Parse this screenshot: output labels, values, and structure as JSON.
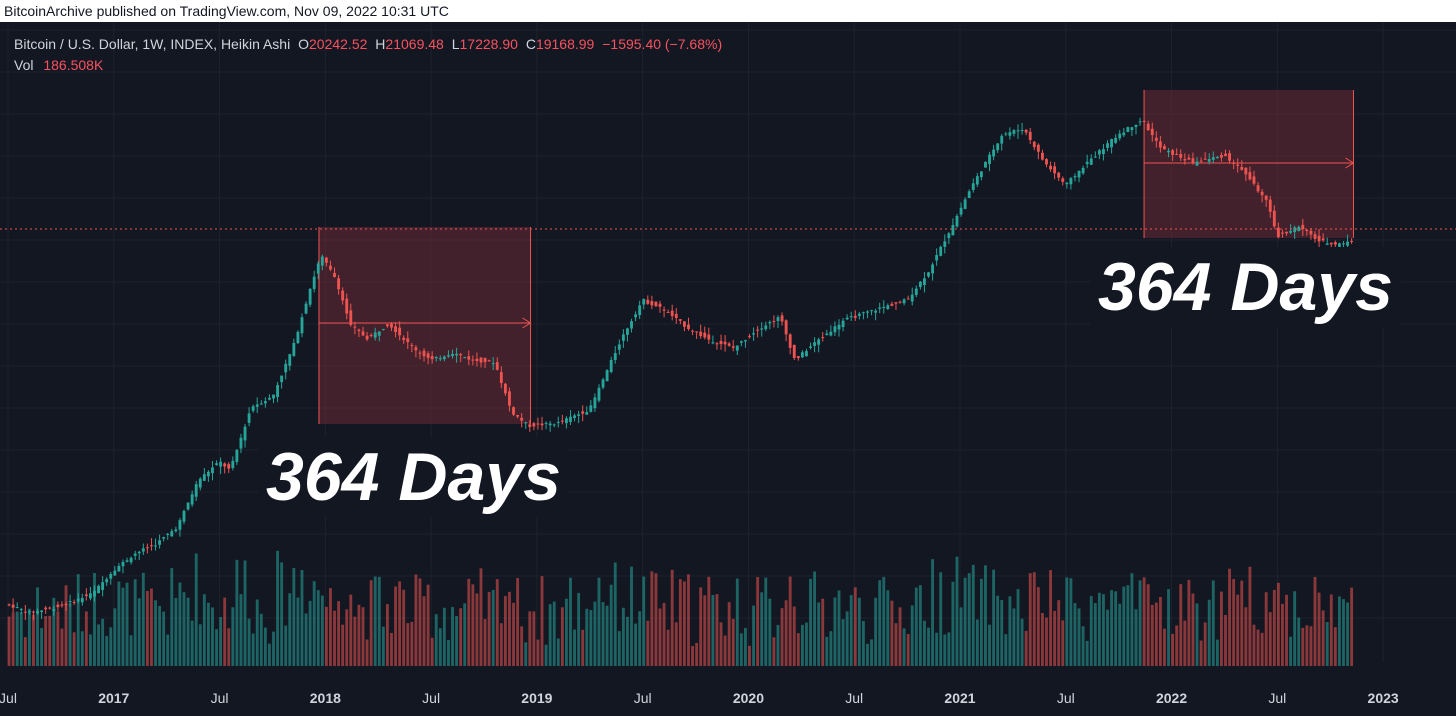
{
  "publisher_line": "BitcoinArchive published on TradingView.com, Nov 09, 2022 10:31 UTC",
  "legend": {
    "symbol": "Bitcoin / U.S. Dollar, 1W, INDEX, Heikin Ashi",
    "open_label": "O",
    "open": "20242.52",
    "high_label": "H",
    "high": "21069.48",
    "low_label": "L",
    "low": "17228.90",
    "close_label": "C",
    "close": "19168.99",
    "change": "−1595.40 (−7.68%)",
    "vol_label": "Vol",
    "vol": "186.508K"
  },
  "annotations": {
    "left": "364 Days",
    "right": "364 Days"
  },
  "colors": {
    "up": "#26a69a",
    "down": "#ef5350",
    "background": "#131722",
    "grid": "#1e222d",
    "box": "#6b2a35"
  },
  "chart_data": {
    "type": "line",
    "title": "Bitcoin / U.S. Dollar, 1W, INDEX, Heikin Ashi",
    "x_tick_labels": [
      "Jul",
      "2017",
      "Jul",
      "2018",
      "Jul",
      "2019",
      "Jul",
      "2020",
      "Jul",
      "2021",
      "Jul",
      "2022",
      "Jul",
      "2023"
    ],
    "x_unit": "year (decimal)",
    "xlim": [
      2016.5,
      2023.25
    ],
    "y_axis": "log price (USD)",
    "ylim": [
      550,
      90000
    ],
    "price_path": [
      [
        2016.5,
        650
      ],
      [
        2016.6,
        600
      ],
      [
        2016.75,
        640
      ],
      [
        2016.9,
        720
      ],
      [
        2017.0,
        900
      ],
      [
        2017.1,
        1050
      ],
      [
        2017.2,
        1150
      ],
      [
        2017.3,
        1350
      ],
      [
        2017.4,
        2100
      ],
      [
        2017.5,
        2500
      ],
      [
        2017.55,
        2300
      ],
      [
        2017.65,
        4200
      ],
      [
        2017.75,
        4600
      ],
      [
        2017.85,
        7500
      ],
      [
        2017.93,
        13000
      ],
      [
        2017.98,
        17500
      ],
      [
        2018.05,
        14000
      ],
      [
        2018.12,
        9000
      ],
      [
        2018.2,
        8000
      ],
      [
        2018.3,
        9200
      ],
      [
        2018.4,
        7500
      ],
      [
        2018.5,
        6500
      ],
      [
        2018.6,
        7000
      ],
      [
        2018.7,
        6500
      ],
      [
        2018.8,
        6400
      ],
      [
        2018.88,
        4000
      ],
      [
        2018.96,
        3500
      ],
      [
        2019.1,
        3600
      ],
      [
        2019.25,
        4100
      ],
      [
        2019.4,
        8000
      ],
      [
        2019.5,
        11500
      ],
      [
        2019.6,
        10500
      ],
      [
        2019.7,
        9000
      ],
      [
        2019.8,
        8000
      ],
      [
        2019.93,
        7300
      ],
      [
        2020.05,
        8800
      ],
      [
        2020.15,
        9800
      ],
      [
        2020.22,
        6500
      ],
      [
        2020.3,
        7500
      ],
      [
        2020.45,
        9500
      ],
      [
        2020.6,
        10500
      ],
      [
        2020.75,
        11500
      ],
      [
        2020.85,
        15000
      ],
      [
        2020.95,
        22000
      ],
      [
        2021.05,
        33000
      ],
      [
        2021.2,
        55000
      ],
      [
        2021.3,
        58000
      ],
      [
        2021.4,
        42000
      ],
      [
        2021.5,
        34000
      ],
      [
        2021.6,
        42000
      ],
      [
        2021.75,
        55000
      ],
      [
        2021.86,
        63000
      ],
      [
        2021.95,
        48000
      ],
      [
        2022.1,
        42000
      ],
      [
        2022.25,
        45000
      ],
      [
        2022.35,
        38000
      ],
      [
        2022.45,
        29000
      ],
      [
        2022.5,
        21000
      ],
      [
        2022.6,
        23000
      ],
      [
        2022.7,
        20000
      ],
      [
        2022.78,
        19500
      ],
      [
        2022.86,
        20000
      ]
    ],
    "volume_series_note": "weekly volume bars, colored by candle direction",
    "current_price_line": 19168.99,
    "annotations": [
      {
        "label": "364 Days",
        "from": 2017.97,
        "to": 2018.97
      },
      {
        "label": "364 Days",
        "from": 2021.87,
        "to": 2022.86
      }
    ]
  }
}
